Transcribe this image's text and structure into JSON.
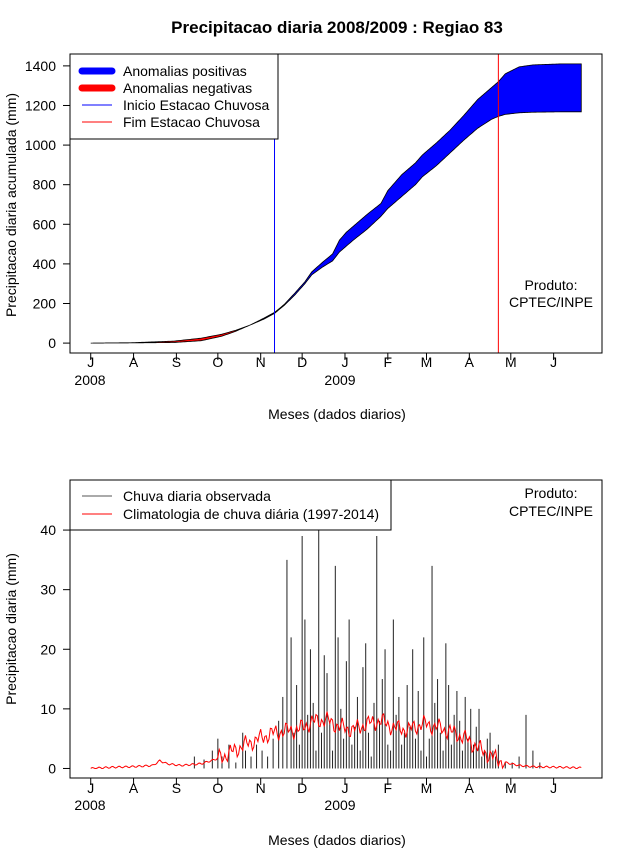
{
  "chart_data": [
    {
      "type": "area",
      "title": "Precipitacao diaria 2008/2009 : Regiao 83",
      "xlabel": "Meses (dados diarios)",
      "ylabel": "Precipitacao diaria acumulada (mm)",
      "x_ticks": [
        "J",
        "A",
        "S",
        "O",
        "N",
        "D",
        "J",
        "F",
        "M",
        "A",
        "M",
        "J"
      ],
      "x_year_labels": [
        "2008",
        "2009"
      ],
      "y_ticks": [
        0,
        200,
        400,
        600,
        800,
        1000,
        1200,
        1400
      ],
      "ylim": [
        -50,
        1460
      ],
      "xlim_days": [
        -15,
        370
      ],
      "legend": {
        "position": "top-left",
        "items": [
          {
            "label": "Anomalias positivas",
            "color": "#0000ff",
            "kind": "thick"
          },
          {
            "label": "Anomalias negativas",
            "color": "#ff0000",
            "kind": "thick"
          },
          {
            "label": "Inicio Estacao Chuvosa",
            "color": "#0000ff",
            "kind": "thin"
          },
          {
            "label": "Fim Estacao Chuvosa",
            "color": "#ff0000",
            "kind": "thin"
          }
        ]
      },
      "product_label": [
        "Produto:",
        "CPTEC/INPE"
      ],
      "rain_season_start_day": 133,
      "rain_season_end_day": 295,
      "observed": {
        "days": [
          0,
          30,
          60,
          80,
          95,
          105,
          115,
          125,
          133,
          140,
          148,
          155,
          160,
          168,
          175,
          180,
          185,
          190,
          200,
          210,
          215,
          225,
          235,
          240,
          250,
          260,
          270,
          280,
          290,
          295,
          300,
          310,
          320,
          340,
          355
        ],
        "values": [
          0,
          1,
          3,
          12,
          35,
          60,
          90,
          125,
          155,
          195,
          255,
          310,
          360,
          410,
          450,
          520,
          560,
          590,
          650,
          705,
          770,
          850,
          910,
          950,
          1010,
          1075,
          1150,
          1230,
          1290,
          1320,
          1360,
          1395,
          1405,
          1410,
          1410
        ]
      },
      "climatology": {
        "days": [
          0,
          30,
          60,
          80,
          95,
          105,
          115,
          125,
          133,
          140,
          148,
          155,
          160,
          168,
          175,
          180,
          185,
          190,
          200,
          210,
          215,
          225,
          235,
          240,
          250,
          260,
          270,
          280,
          290,
          295,
          300,
          310,
          320,
          340,
          355
        ],
        "values": [
          0,
          2,
          10,
          25,
          45,
          65,
          90,
          120,
          150,
          190,
          245,
          300,
          345,
          385,
          415,
          460,
          490,
          520,
          575,
          640,
          680,
          740,
          800,
          840,
          895,
          960,
          1025,
          1085,
          1130,
          1145,
          1155,
          1163,
          1166,
          1168,
          1168
        ]
      }
    },
    {
      "type": "bar",
      "xlabel": "Meses (dados diarios)",
      "ylabel": "Precipitacao diaria (mm)",
      "x_ticks": [
        "J",
        "A",
        "S",
        "O",
        "N",
        "D",
        "J",
        "F",
        "M",
        "A",
        "M",
        "J"
      ],
      "x_year_labels": [
        "2008",
        "2009"
      ],
      "y_ticks": [
        0,
        10,
        20,
        30,
        40
      ],
      "ylim": [
        -1.6,
        48.4
      ],
      "xlim_days": [
        -15,
        370
      ],
      "legend": {
        "position": "top-left",
        "items": [
          {
            "label": "Chuva diaria observada",
            "color": "#555555",
            "kind": "thin"
          },
          {
            "label": "Climatologia de chuva diária (1997-2014)",
            "color": "#ff0000",
            "kind": "thin"
          }
        ]
      },
      "product_label": [
        "Produto:",
        "CPTEC/INPE"
      ],
      "daily_observed": {
        "days": [
          75,
          82,
          88,
          92,
          95,
          100,
          105,
          110,
          112,
          116,
          120,
          124,
          128,
          132,
          136,
          139,
          142,
          145,
          147,
          149,
          151,
          153,
          155,
          157,
          159,
          161,
          163,
          165,
          167,
          169,
          171,
          173,
          175,
          177,
          179,
          181,
          183,
          185,
          187,
          189,
          191,
          193,
          195,
          197,
          199,
          201,
          203,
          205,
          207,
          209,
          211,
          213,
          215,
          217,
          219,
          221,
          223,
          225,
          227,
          229,
          231,
          233,
          235,
          237,
          239,
          241,
          243,
          245,
          247,
          249,
          251,
          253,
          255,
          257,
          259,
          261,
          263,
          265,
          267,
          269,
          271,
          273,
          275,
          277,
          279,
          281,
          283,
          285,
          287,
          289,
          291,
          293,
          295,
          300,
          305,
          310,
          315,
          320,
          325
        ],
        "values": [
          2,
          1.5,
          3,
          5,
          2,
          4,
          1,
          6,
          3,
          2,
          4,
          3,
          2,
          5,
          8,
          12,
          35,
          22,
          6,
          14,
          4,
          39,
          25,
          9,
          20,
          11,
          3,
          41,
          6,
          19,
          16,
          8,
          3,
          34,
          22,
          10,
          5,
          18,
          25,
          4,
          7,
          12,
          3,
          17,
          21,
          6,
          2,
          11,
          39,
          8,
          15,
          20,
          4,
          3,
          25,
          9,
          12,
          4,
          6,
          14,
          7,
          20,
          5,
          13,
          3,
          22,
          2,
          5,
          34,
          11,
          15,
          6,
          3,
          21,
          14,
          4,
          9,
          13,
          8,
          3,
          12,
          5,
          10,
          4,
          7,
          10,
          2,
          3,
          5,
          6,
          3,
          2,
          4,
          1,
          1,
          2,
          9,
          3,
          1
        ]
      },
      "climatology_daily": {
        "days": [
          0,
          15,
          30,
          45,
          50,
          55,
          65,
          80,
          90,
          100,
          110,
          120,
          130,
          140,
          150,
          160,
          170,
          180,
          190,
          200,
          210,
          220,
          230,
          240,
          250,
          260,
          270,
          280,
          290,
          300,
          310,
          320,
          340,
          355
        ],
        "values": [
          0,
          0.2,
          0.3,
          0.5,
          1.3,
          0.8,
          0.5,
          0.8,
          1.5,
          2.5,
          3.8,
          4.8,
          5.8,
          6.3,
          6.5,
          7.8,
          8.2,
          7.0,
          6.5,
          7.5,
          8.0,
          6.8,
          6.5,
          7.5,
          7.0,
          6.2,
          5.2,
          3.5,
          2.0,
          1.0,
          0.5,
          0.3,
          0.2,
          0.1
        ]
      }
    }
  ]
}
